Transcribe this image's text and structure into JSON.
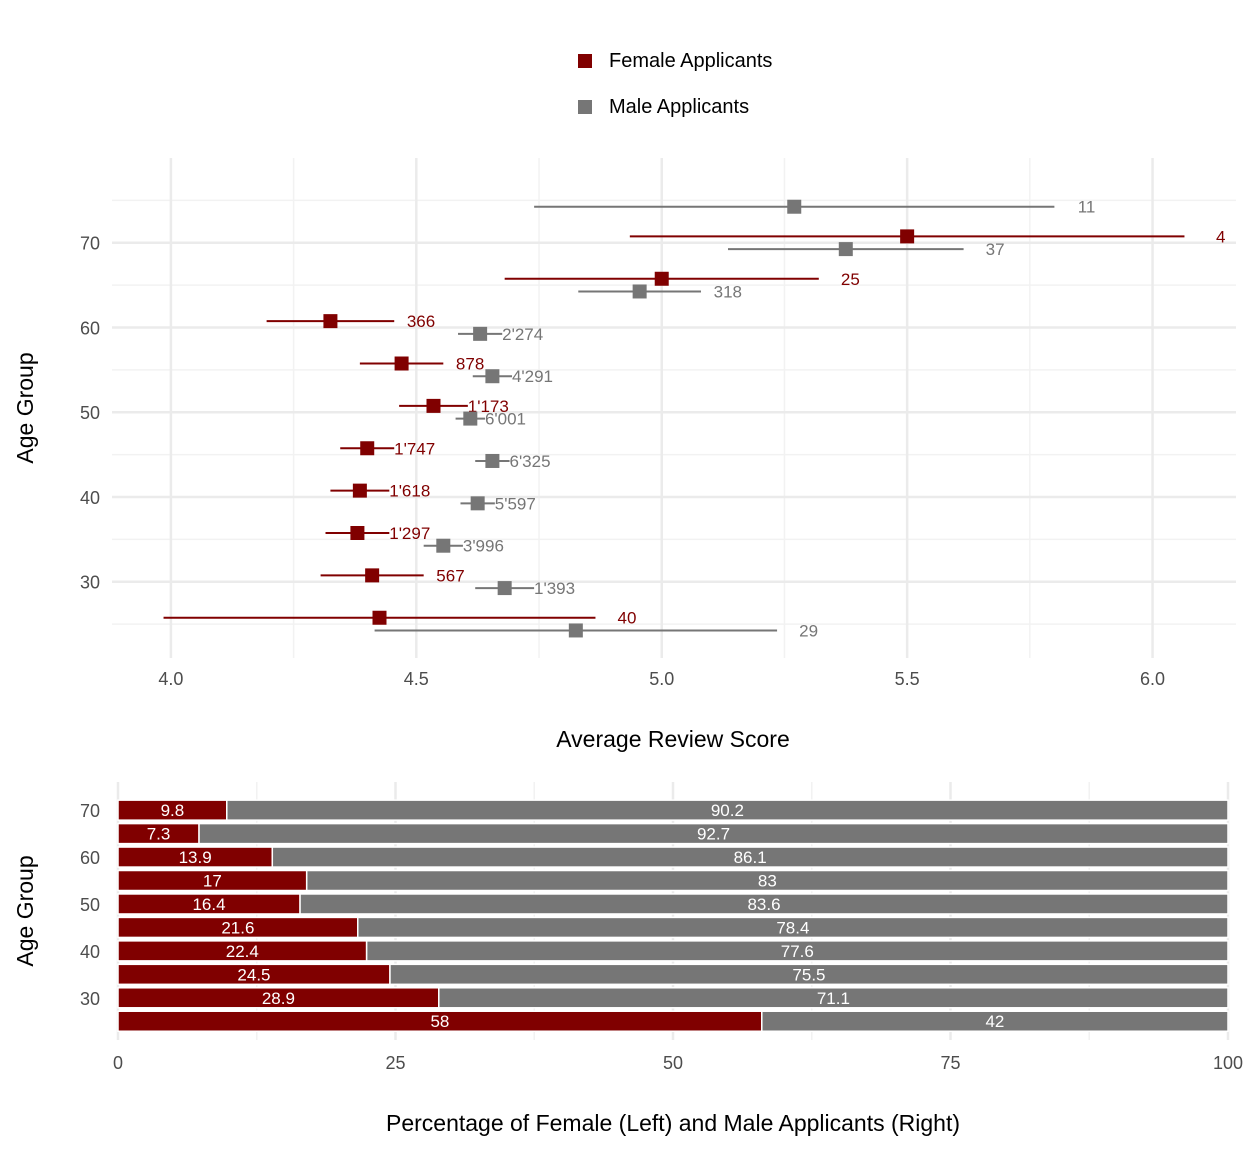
{
  "chart_data": [
    {
      "type": "scatter",
      "xlabel": "Average Review Score",
      "ylabel": "Age Group",
      "xlim": [
        3.88,
        6.17
      ],
      "ylim": [
        21,
        80
      ],
      "xticks": [
        "4.0",
        "4.5",
        "5.0",
        "5.5",
        "6.0"
      ],
      "yticks": [
        "30",
        "40",
        "50",
        "60",
        "70"
      ],
      "legend": "top",
      "grid": true,
      "series": [
        {
          "name": "Female Applicants",
          "color": "#800000",
          "points": [
            {
              "age": 25,
              "mean": 4.425,
              "low": 3.985,
              "high": 4.865,
              "n": "40"
            },
            {
              "age": 30,
              "mean": 4.41,
              "low": 4.305,
              "high": 4.515,
              "n": "567"
            },
            {
              "age": 35,
              "mean": 4.38,
              "low": 4.315,
              "high": 4.445,
              "n": "1'297"
            },
            {
              "age": 40,
              "mean": 4.385,
              "low": 4.325,
              "high": 4.445,
              "n": "1'618"
            },
            {
              "age": 45,
              "mean": 4.4,
              "low": 4.345,
              "high": 4.455,
              "n": "1'747"
            },
            {
              "age": 50,
              "mean": 4.535,
              "low": 4.465,
              "high": 4.605,
              "n": "1'173"
            },
            {
              "age": 55,
              "mean": 4.47,
              "low": 4.385,
              "high": 4.555,
              "n": "878"
            },
            {
              "age": 60,
              "mean": 4.325,
              "low": 4.195,
              "high": 4.455,
              "n": "366"
            },
            {
              "age": 65,
              "mean": 5.0,
              "low": 4.68,
              "high": 5.32,
              "n": "25"
            },
            {
              "age": 70,
              "mean": 5.5,
              "low": 4.935,
              "high": 6.065,
              "n": "4"
            }
          ]
        },
        {
          "name": "Male Applicants",
          "color": "#767676",
          "points": [
            {
              "age": 25,
              "mean": 4.825,
              "low": 4.415,
              "high": 5.235,
              "n": "29"
            },
            {
              "age": 30,
              "mean": 4.68,
              "low": 4.62,
              "high": 4.74,
              "n": "1'393"
            },
            {
              "age": 35,
              "mean": 4.555,
              "low": 4.515,
              "high": 4.595,
              "n": "3'996"
            },
            {
              "age": 40,
              "mean": 4.625,
              "low": 4.59,
              "high": 4.66,
              "n": "5'597"
            },
            {
              "age": 45,
              "mean": 4.655,
              "low": 4.62,
              "high": 4.69,
              "n": "6'325"
            },
            {
              "age": 50,
              "mean": 4.61,
              "low": 4.58,
              "high": 4.64,
              "n": "6'001"
            },
            {
              "age": 55,
              "mean": 4.655,
              "low": 4.615,
              "high": 4.695,
              "n": "4'291"
            },
            {
              "age": 60,
              "mean": 4.63,
              "low": 4.585,
              "high": 4.675,
              "n": "2'274"
            },
            {
              "age": 65,
              "mean": 4.955,
              "low": 4.83,
              "high": 5.08,
              "n": "318"
            },
            {
              "age": 70,
              "mean": 5.375,
              "low": 5.135,
              "high": 5.615,
              "n": "37"
            },
            {
              "age": 75,
              "mean": 5.27,
              "low": 4.74,
              "high": 5.8,
              "n": "11"
            }
          ]
        }
      ]
    },
    {
      "type": "bar",
      "orientation": "horizontal",
      "stacked": true,
      "xlabel": "Percentage of Female (Left) and Male Applicants (Right)",
      "ylabel": "Age Group",
      "xlim": [
        0,
        100
      ],
      "ylim": [
        21,
        76
      ],
      "xticks": [
        "0",
        "25",
        "50",
        "75",
        "100"
      ],
      "yticks": [
        "30",
        "40",
        "50",
        "60",
        "70"
      ],
      "grid": true,
      "categories": [
        25,
        30,
        35,
        40,
        45,
        50,
        55,
        60,
        65,
        70
      ],
      "series": [
        {
          "name": "Female Applicants",
          "color": "#800000",
          "values": [
            58,
            28.9,
            24.5,
            22.4,
            21.6,
            16.4,
            17,
            13.9,
            7.3,
            9.8
          ],
          "labels": [
            "58",
            "28.9",
            "24.5",
            "22.4",
            "21.6",
            "16.4",
            "17",
            "13.9",
            "7.3",
            "9.8"
          ]
        },
        {
          "name": "Male Applicants",
          "color": "#767676",
          "values": [
            42,
            71.1,
            75.5,
            77.6,
            78.4,
            83.6,
            83,
            86.1,
            92.7,
            90.2
          ],
          "labels": [
            "42",
            "71.1",
            "75.5",
            "77.6",
            "78.4",
            "83.6",
            "83",
            "86.1",
            "92.7",
            "90.2"
          ]
        }
      ]
    }
  ]
}
